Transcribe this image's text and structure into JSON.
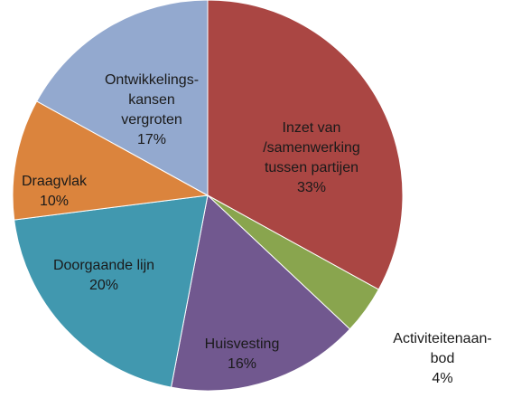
{
  "chart_data": {
    "type": "pie",
    "categories": [
      "Inzet van\n/samenwerking\ntussen partijen",
      "Activiteitenaan-\nbod",
      "Huisvesting",
      "Doorgaande lijn",
      "Draagvlak",
      "Ontwikkelings-\nkansen\nvergroten"
    ],
    "values": [
      33,
      4,
      16,
      20,
      10,
      17
    ],
    "value_labels": [
      "33%",
      "4%",
      "16%",
      "20%",
      "10%",
      "17%"
    ],
    "colors": [
      "#aa4643",
      "#89a54e",
      "#71588f",
      "#4198af",
      "#db843d",
      "#93a9cf"
    ]
  }
}
